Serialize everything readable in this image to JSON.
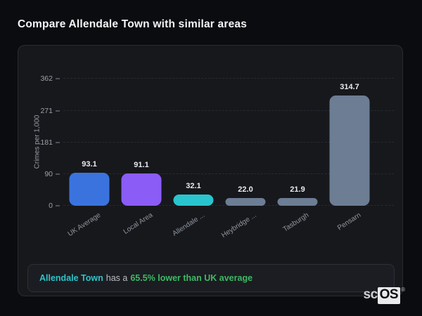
{
  "page": {
    "title": "Compare Allendale Town with similar areas"
  },
  "chart_data": {
    "type": "bar",
    "title": "Compare Allendale Town with similar areas",
    "xlabel": "",
    "ylabel": "Crimes per 1,000",
    "ylim": [
      0,
      364
    ],
    "yticks": [
      0,
      90,
      181,
      271,
      362
    ],
    "grid": "horizontal-dashed",
    "legend": "none",
    "categories": [
      "UK Average",
      "Local Area",
      "Allendale ...",
      "Heybridge ...",
      "Tasburgh",
      "Pensarn"
    ],
    "values": [
      93.1,
      91.1,
      32.1,
      22.0,
      21.9,
      314.7
    ],
    "value_labels": [
      "93.1",
      "91.1",
      "32.1",
      "22.0",
      "21.9",
      "314.7"
    ],
    "bar_colors": [
      "#3b73de",
      "#8b5cf6",
      "#29c4ce",
      "#6c7d94",
      "#6c7d94",
      "#6c7d94"
    ]
  },
  "note": {
    "area_label": "Allendale Town",
    "middle_text": "has a",
    "highlight_text": "65.5% lower than UK average",
    "area_color": "#2cc5c9",
    "highlight_color": "#3eba62"
  },
  "logo": {
    "prefix": "sc",
    "suffix": "OS",
    "registered": "®"
  },
  "colors": {
    "page_background": "#0b0c0f",
    "card_background": "#17181c",
    "card_border": "#292b31",
    "note_background": "#1b1d22",
    "text_primary": "#f4f5f7",
    "text_muted": "#9aa1ab"
  }
}
